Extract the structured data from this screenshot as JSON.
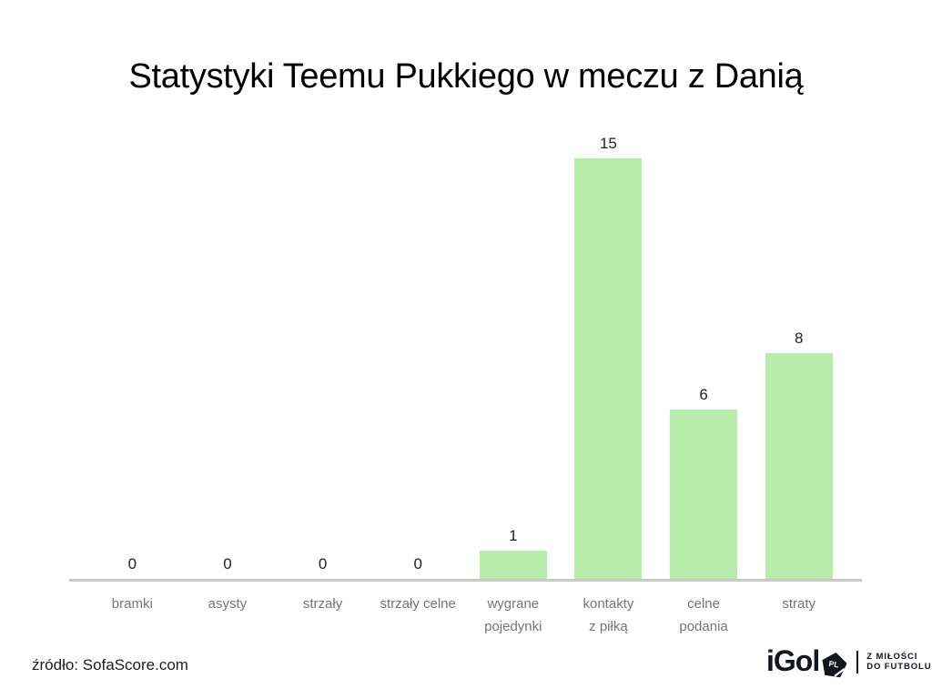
{
  "title": "Statystyki Teemu Pukkiego w meczu z Danią",
  "source_credit": "źródło: SofaScore.com",
  "logo": {
    "name": "iGol",
    "badge_text": "PL",
    "tagline": [
      "Z MIŁOŚCI",
      "DO FUTBOLU"
    ]
  },
  "chart_data": {
    "type": "bar",
    "title": "Statystyki Teemu Pukkiego w meczu z Danią",
    "categories": [
      "bramki",
      "asysty",
      "strzały",
      "strzały celne",
      "wygrane pojedynki",
      "kontakty z piłką",
      "celne podania",
      "straty"
    ],
    "values": [
      0,
      0,
      0,
      0,
      1,
      15,
      6,
      8
    ],
    "tick_lines": [
      [
        "bramki"
      ],
      [
        "asysty"
      ],
      [
        "strzały"
      ],
      [
        "strzały celne"
      ],
      [
        "wygrane",
        "pojedynki"
      ],
      [
        "kontakty",
        "z piłką"
      ],
      [
        "celne",
        "podania"
      ],
      [
        "straty"
      ]
    ],
    "xlabel": "",
    "ylabel": "",
    "ylim": [
      0,
      15
    ],
    "grid": false,
    "legend": false,
    "value_labels_shown": true,
    "bar_color": "#b7ecab",
    "axis_line_color": "#c9c9c9",
    "value_label_color": "#212121",
    "tick_label_color": "#757575",
    "title_color": "#000000"
  }
}
